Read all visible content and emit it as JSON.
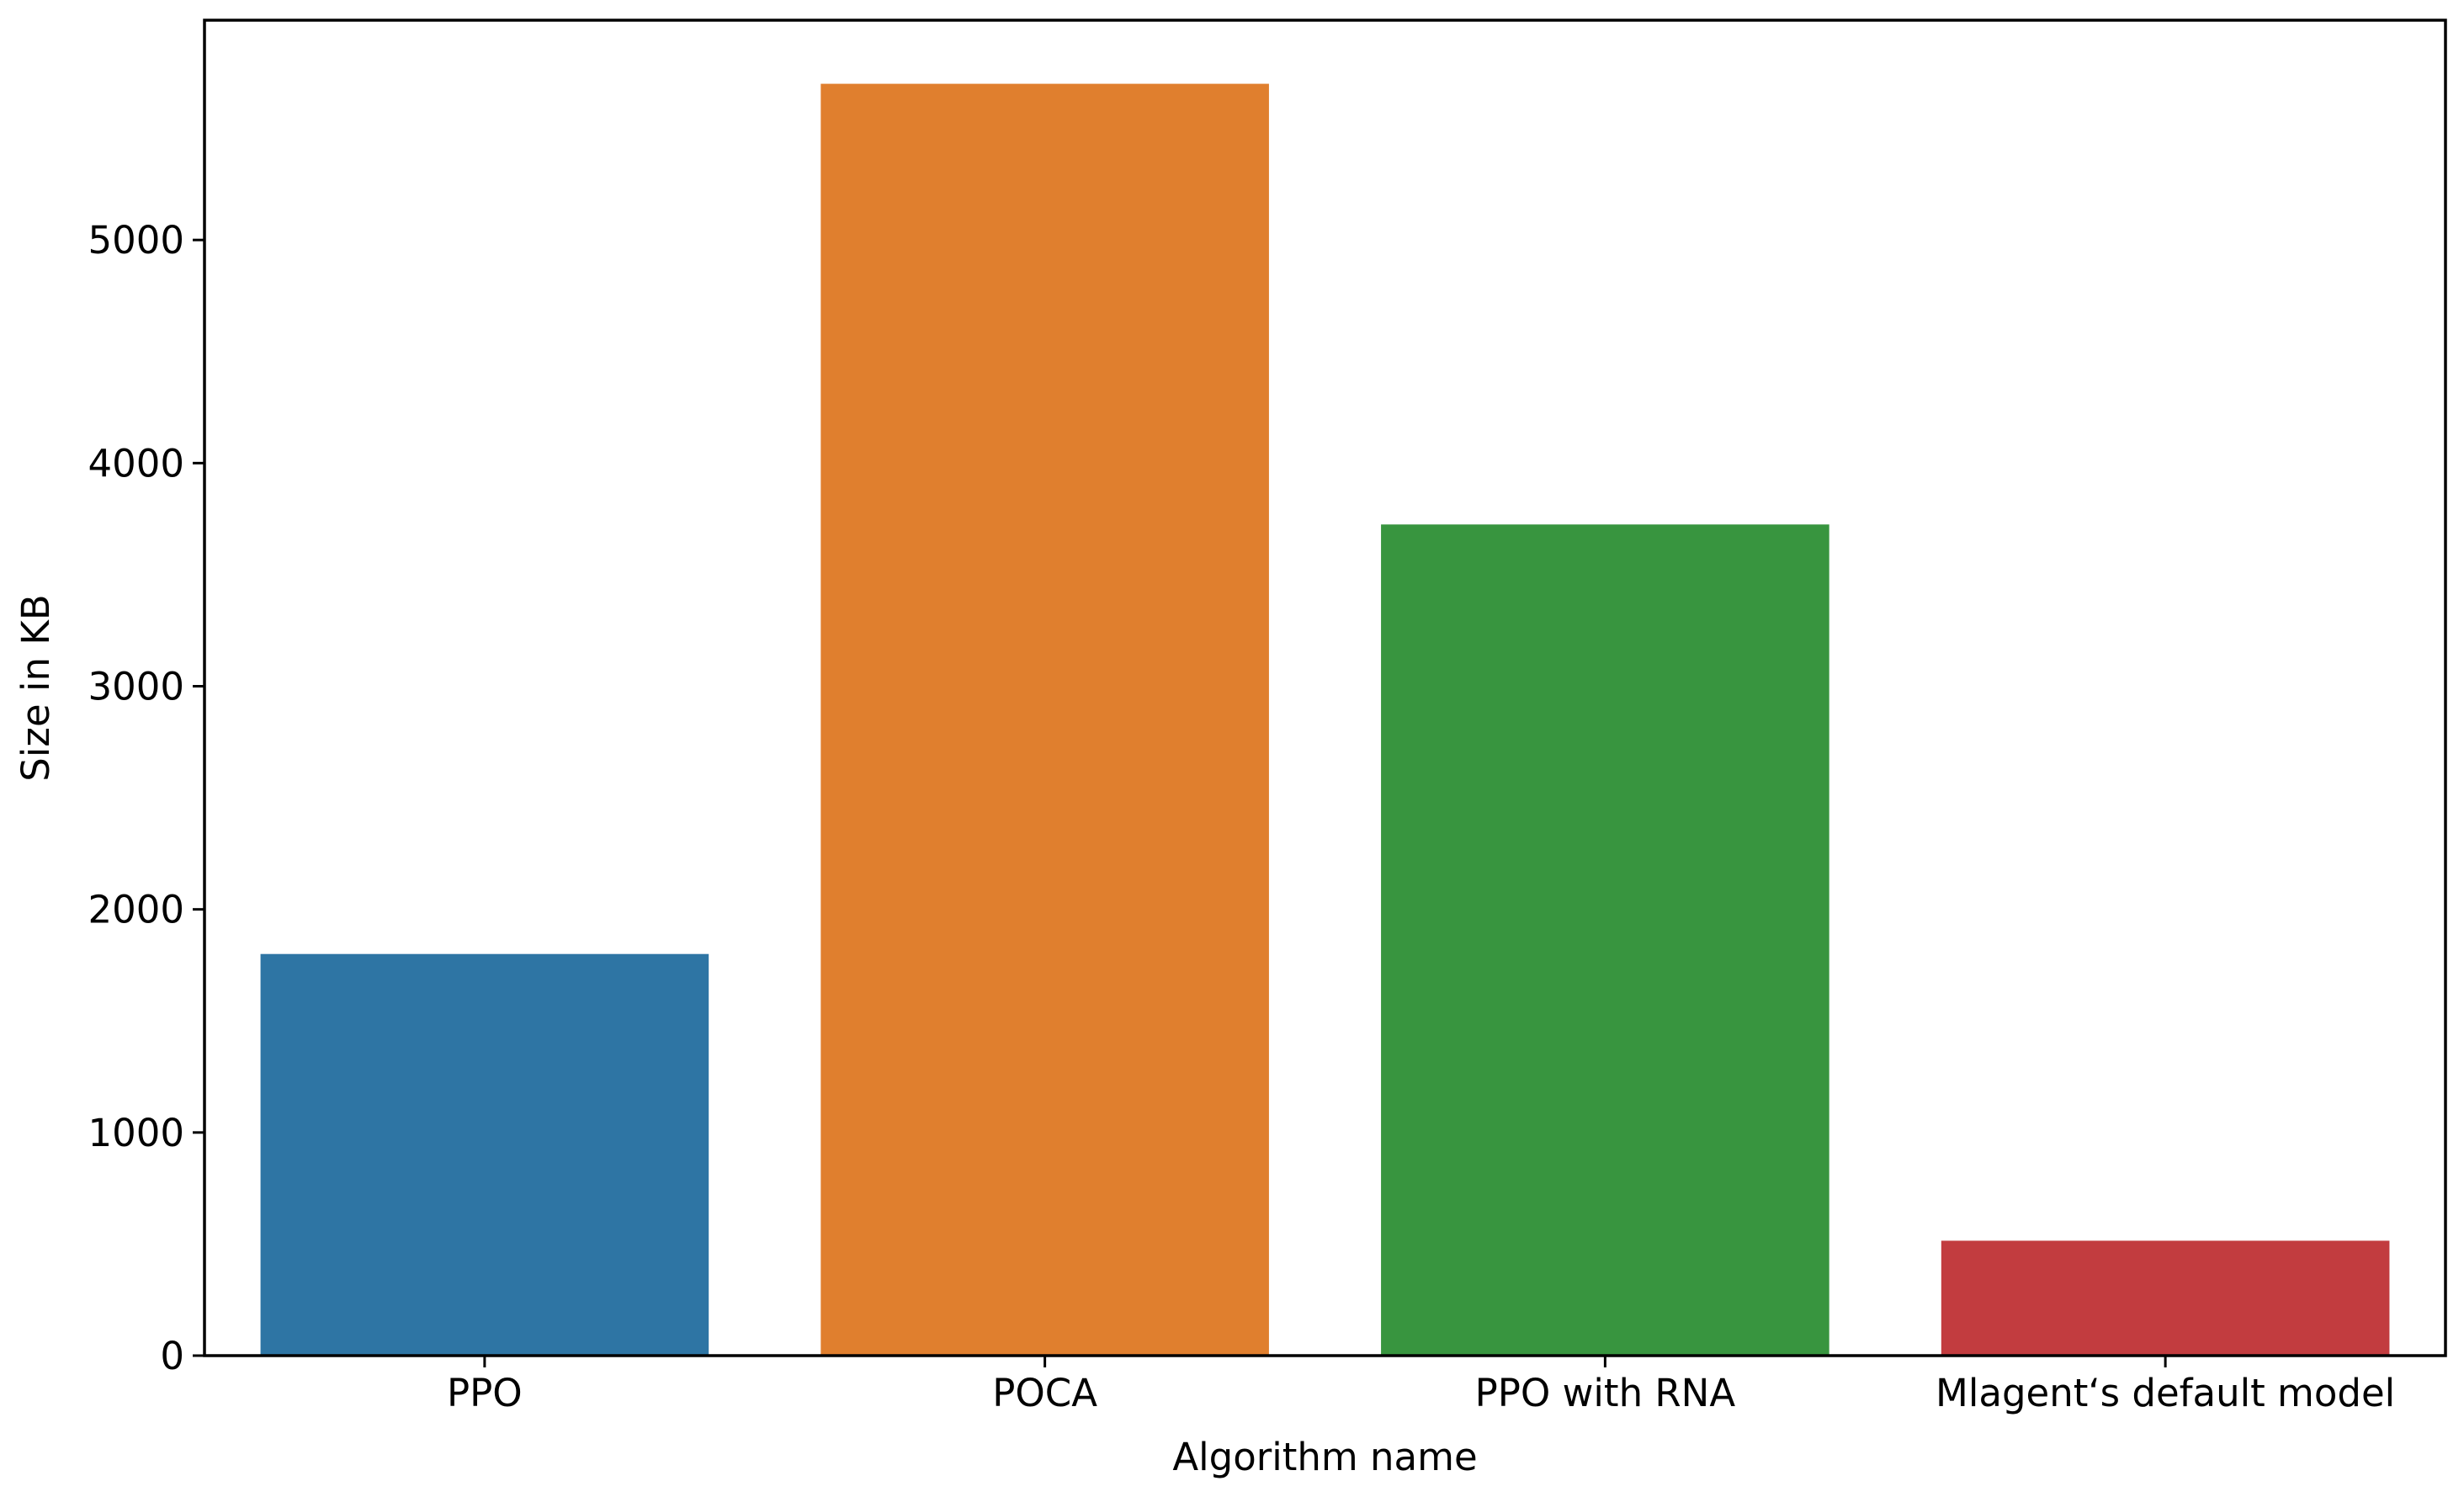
{
  "chart_data": {
    "type": "bar",
    "title": "",
    "xlabel": "Algorithm name",
    "ylabel": "Size in KB",
    "categories": [
      "PPO",
      "POCA",
      "PPO with RNA",
      "Mlagent‘s default model"
    ],
    "values": [
      1800,
      5700,
      3725,
      515
    ],
    "colors": [
      "#2e75a4",
      "#e07f2e",
      "#38953f",
      "#c23c3f"
    ],
    "ylim": [
      0,
      5985
    ],
    "yticks": [
      0,
      1000,
      2000,
      3000,
      4000,
      5000
    ],
    "ytick_labels": [
      "0",
      "1000",
      "2000",
      "3000",
      "4000",
      "5000"
    ],
    "grid": false,
    "legend": "none"
  }
}
